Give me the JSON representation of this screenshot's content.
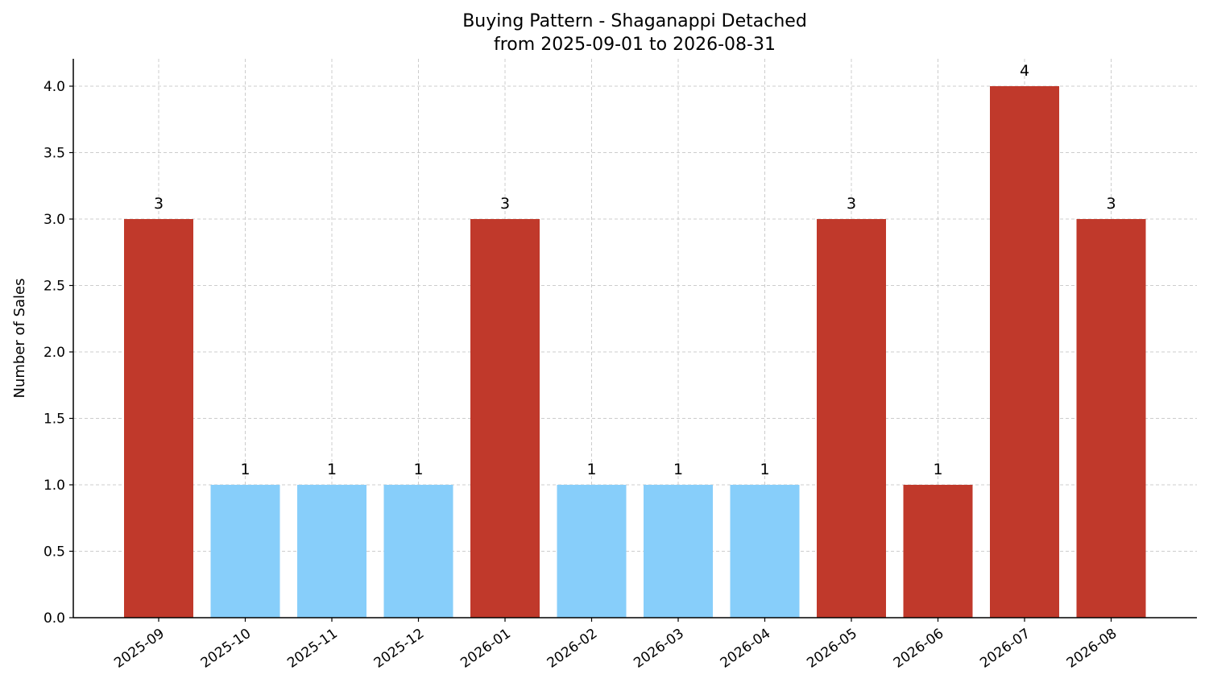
{
  "chart_data": {
    "type": "bar",
    "title": "Buying Pattern - Shaganappi Detached",
    "subtitle": "from 2025-09-01 to 2026-08-31",
    "xlabel": "",
    "ylabel": "Number of Sales",
    "ylim": [
      0,
      4.2
    ],
    "yticks": [
      "0.0",
      "0.5",
      "1.0",
      "1.5",
      "2.0",
      "2.5",
      "3.0",
      "3.5",
      "4.0"
    ],
    "categories": [
      "2025-09",
      "2025-10",
      "2025-11",
      "2025-12",
      "2026-01",
      "2026-02",
      "2026-03",
      "2026-04",
      "2026-05",
      "2026-06",
      "2026-07",
      "2026-08"
    ],
    "values": [
      3,
      1,
      1,
      1,
      3,
      1,
      1,
      1,
      3,
      1,
      4,
      3
    ],
    "value_labels": [
      "3",
      "1",
      "1",
      "1",
      "3",
      "1",
      "1",
      "1",
      "3",
      "1",
      "4",
      "3"
    ],
    "bar_colors": [
      "#c0392b",
      "#87cefa",
      "#87cefa",
      "#87cefa",
      "#c0392b",
      "#87cefa",
      "#87cefa",
      "#87cefa",
      "#c0392b",
      "#c0392b",
      "#c0392b",
      "#c0392b"
    ],
    "grid": true,
    "legend": "none"
  }
}
